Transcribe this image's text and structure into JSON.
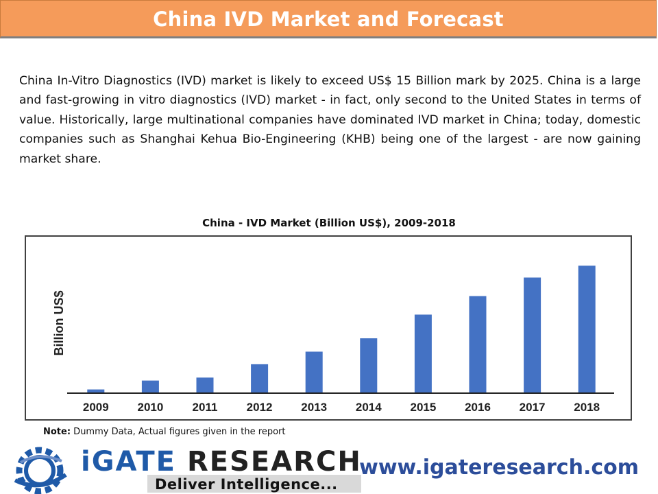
{
  "header": {
    "title": "China IVD Market and Forecast"
  },
  "intro_text": "China In-Vitro Diagnostics (IVD) market is likely to exceed US$ 15 Billion mark by 2025. China is a large and fast-growing in vitro diagnostics (IVD) market - in fact, only second to the United States in terms of value. Historically, large multinational companies have dominated IVD market in China; today, domestic companies such as Shanghai Kehua Bio-Engineering (KHB) being one of the largest - are now gaining market share.",
  "chart_data": {
    "type": "bar",
    "title": "China - IVD Market (Billion US$), 2009-2018",
    "ylabel": "Billion US$",
    "xlabel": "",
    "categories": [
      "2009",
      "2010",
      "2011",
      "2012",
      "2013",
      "2014",
      "2015",
      "2016",
      "2017",
      "2018"
    ],
    "values": [
      0.5,
      1.7,
      2.1,
      3.9,
      5.6,
      7.4,
      10.6,
      13.1,
      15.6,
      17.2
    ],
    "ylim": [
      0,
      20
    ],
    "grid": false,
    "bar_color": "#4472c4"
  },
  "note": {
    "label": "Note:",
    "text": " Dummy Data, Actual figures given in the report"
  },
  "logo": {
    "brand_i": "iGATE",
    "brand_rest": " RESEARCH",
    "tagline": "Deliver Intelligence..."
  },
  "website": "www.igateresearch.com",
  "colors": {
    "header_bg": "#f59b5a",
    "accent_blue": "#2c4d9a"
  }
}
